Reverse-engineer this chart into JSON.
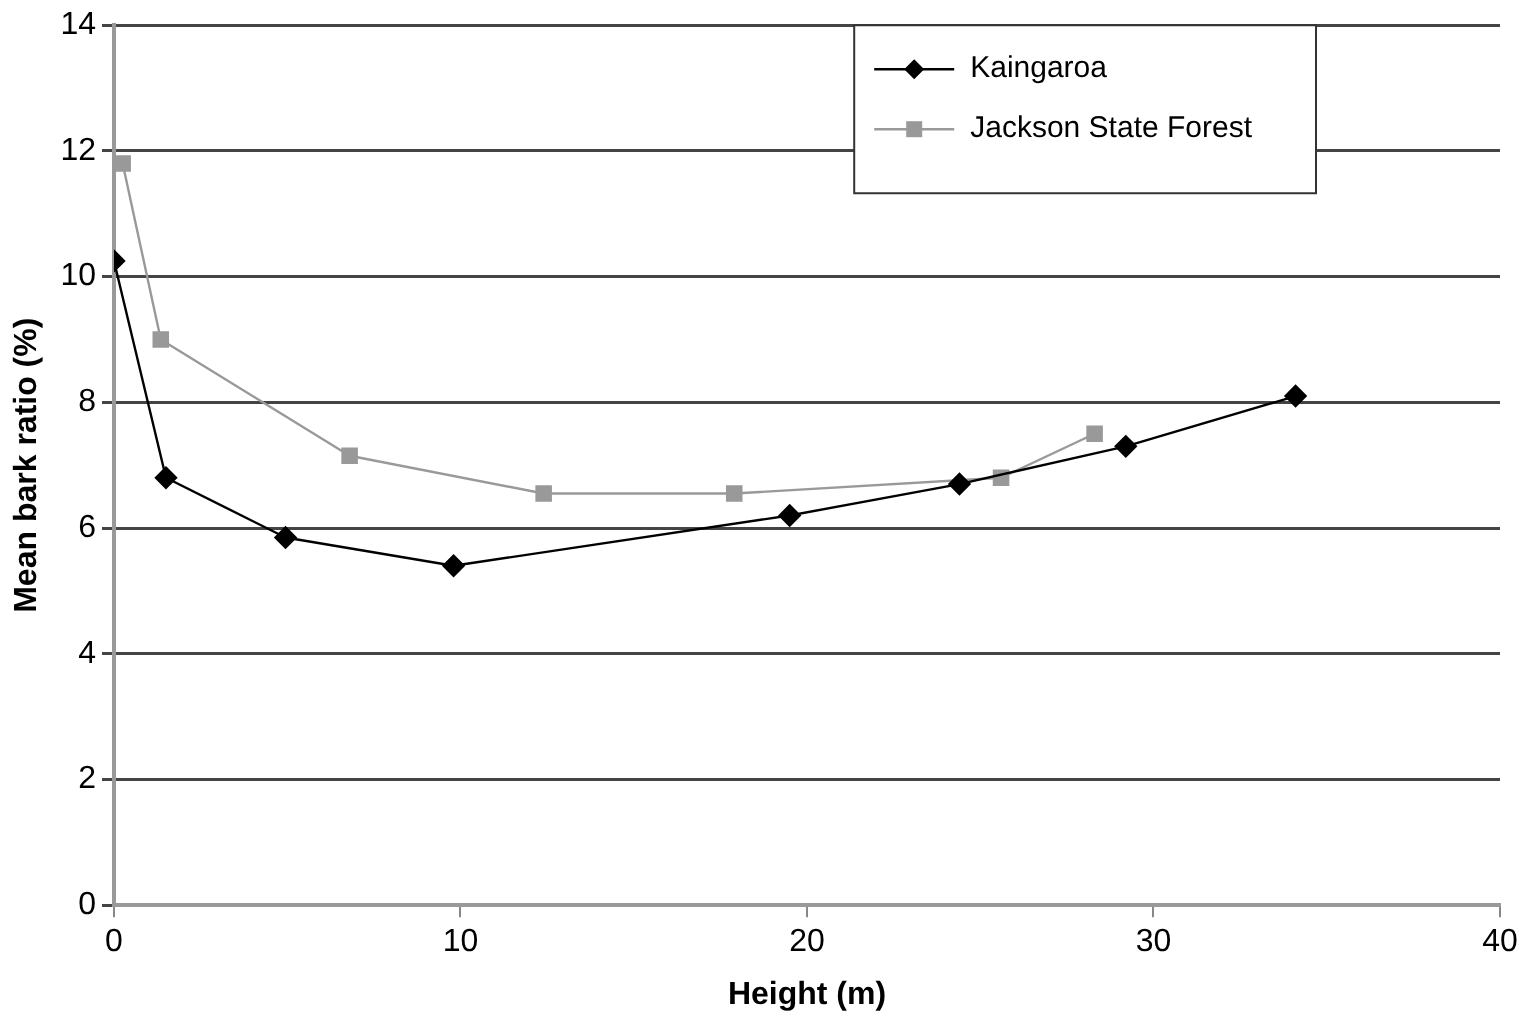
{
  "chart_data": {
    "type": "line",
    "xlabel": "Height (m)",
    "ylabel": "Mean bark ratio (%)",
    "xlim": [
      0,
      40
    ],
    "xticks": [
      0,
      10,
      20,
      30,
      40
    ],
    "ylim": [
      0,
      14
    ],
    "yticks": [
      0,
      2,
      4,
      6,
      8,
      10,
      12,
      14
    ],
    "grid": "y",
    "legend": "top right",
    "line_style": "solid",
    "series": [
      {
        "name": "Kaingaroa",
        "color": "#000000",
        "marker": "diamond",
        "x": [
          0,
          1.5,
          4.95,
          9.8,
          19.5,
          24.4,
          29.2,
          34.1
        ],
        "values": [
          10.25,
          6.8,
          5.85,
          5.4,
          6.2,
          6.7,
          7.3,
          8.1
        ]
      },
      {
        "name": "Jackson State Forest",
        "color": "#999999",
        "marker": "square",
        "x": [
          0.25,
          1.35,
          6.8,
          12.4,
          17.9,
          25.6,
          28.3
        ],
        "values": [
          11.8,
          9.0,
          7.15,
          6.55,
          6.55,
          6.8,
          7.5
        ]
      }
    ]
  }
}
